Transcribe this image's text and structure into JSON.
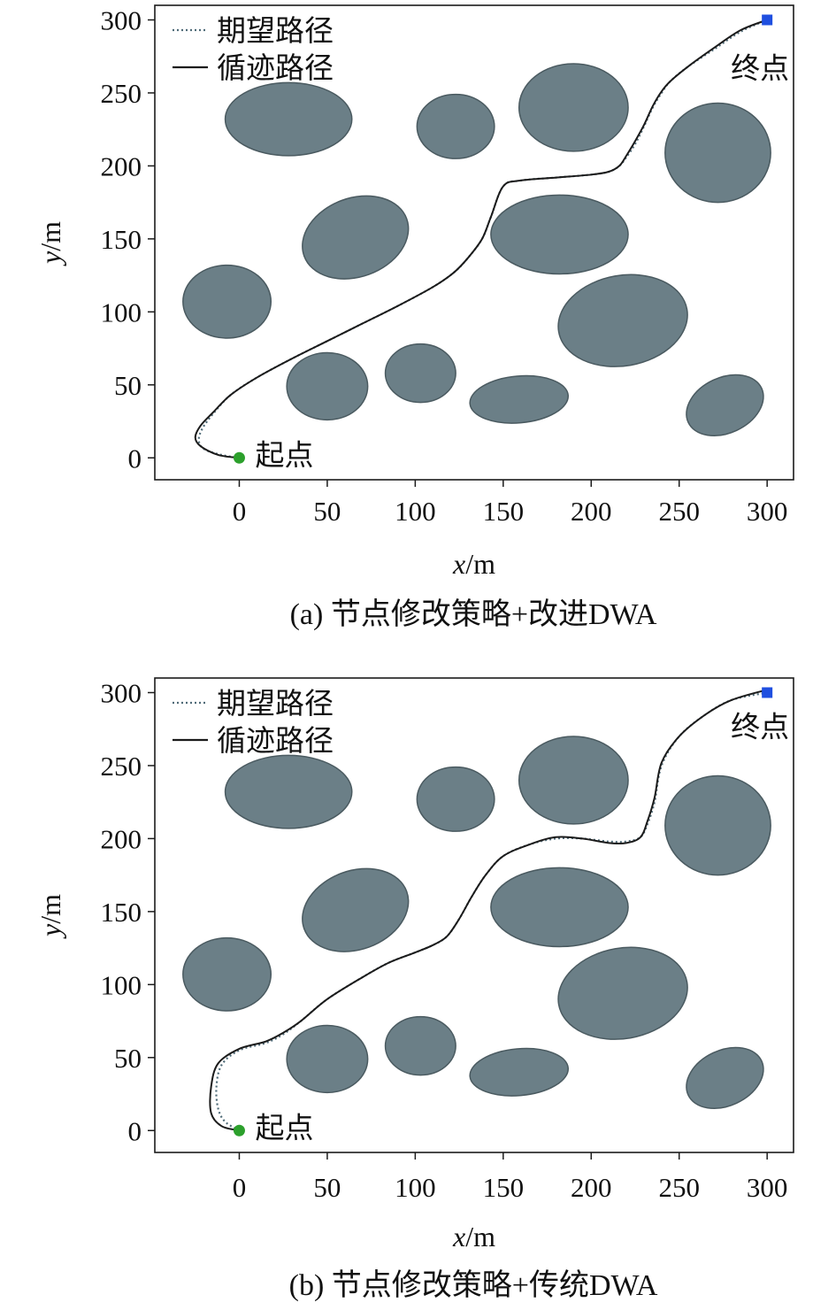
{
  "chart_data": [
    {
      "type": "line",
      "caption": "(a) 节点修改策略+改进DWA",
      "xlabel_var": "x",
      "xlabel_unit": "/m",
      "ylabel_var": "y",
      "ylabel_unit": "/m",
      "xlim": [
        -48,
        315
      ],
      "ylim": [
        -15,
        310
      ],
      "xticks": [
        0,
        50,
        100,
        150,
        200,
        250,
        300
      ],
      "yticks": [
        0,
        50,
        100,
        150,
        200,
        250,
        300
      ],
      "legend": {
        "placement": "top-left",
        "entries": [
          "期望路径",
          "循迹路径"
        ]
      },
      "start": {
        "label": "起点",
        "x": 0,
        "y": 0,
        "color": "#2ca02c"
      },
      "goal": {
        "label": "终点",
        "x": 300,
        "y": 300,
        "color": "#1f4fe0"
      },
      "obstacles": [
        {
          "cx": 28,
          "cy": 232,
          "rx": 36,
          "ry": 25,
          "rot": 0
        },
        {
          "cx": 123,
          "cy": 227,
          "rx": 22,
          "ry": 22,
          "rot": 0
        },
        {
          "cx": 190,
          "cy": 240,
          "rx": 31,
          "ry": 30,
          "rot": 0
        },
        {
          "cx": 272,
          "cy": 209,
          "rx": 30,
          "ry": 34,
          "rot": 0
        },
        {
          "cx": 66,
          "cy": 151,
          "rx": 31,
          "ry": 27,
          "rot": -20
        },
        {
          "cx": 182,
          "cy": 153,
          "rx": 39,
          "ry": 27,
          "rot": 0
        },
        {
          "cx": -7,
          "cy": 107,
          "rx": 25,
          "ry": 25,
          "rot": 0
        },
        {
          "cx": 50,
          "cy": 49,
          "rx": 23,
          "ry": 23,
          "rot": 0
        },
        {
          "cx": 103,
          "cy": 58,
          "rx": 20,
          "ry": 20,
          "rot": 0
        },
        {
          "cx": 218,
          "cy": 94,
          "rx": 37,
          "ry": 31,
          "rot": -10
        },
        {
          "cx": 159,
          "cy": 40,
          "rx": 28,
          "ry": 16,
          "rot": -5
        },
        {
          "cx": 276,
          "cy": 36,
          "rx": 23,
          "ry": 19,
          "rot": -25
        }
      ],
      "series": [
        {
          "name": "期望路径",
          "style": "dotted",
          "x": [
            0,
            -10,
            -20,
            -23,
            -21,
            -15,
            -5,
            10,
            30,
            50,
            70,
            90,
            110,
            122,
            130,
            138,
            143,
            150,
            160,
            180,
            200,
            210,
            216,
            220,
            225,
            230,
            235,
            240,
            245,
            255,
            270,
            285,
            300
          ],
          "y": [
            0,
            2,
            6,
            12,
            20,
            30,
            43,
            55,
            68,
            80,
            92,
            104,
            117,
            127,
            137,
            150,
            165,
            186,
            190,
            192,
            194,
            196,
            200,
            206,
            215,
            227,
            240,
            250,
            258,
            268,
            280,
            292,
            300
          ]
        },
        {
          "name": "循迹路径",
          "style": "solid",
          "x": [
            0,
            -12,
            -22,
            -25,
            -22,
            -15,
            -5,
            10,
            30,
            50,
            70,
            90,
            110,
            122,
            130,
            138,
            143,
            150,
            160,
            180,
            200,
            210,
            216,
            220,
            225,
            230,
            235,
            240,
            245,
            255,
            270,
            285,
            300
          ],
          "y": [
            0,
            2,
            8,
            14,
            22,
            31,
            43,
            55,
            68,
            80,
            92,
            104,
            117,
            127,
            137,
            150,
            165,
            186,
            190,
            192,
            194,
            196,
            200,
            207,
            217,
            228,
            241,
            251,
            258,
            268,
            281,
            293,
            300
          ]
        }
      ]
    },
    {
      "type": "line",
      "caption": "(b) 节点修改策略+传统DWA",
      "xlabel_var": "x",
      "xlabel_unit": "/m",
      "ylabel_var": "y",
      "ylabel_unit": "/m",
      "xlim": [
        -48,
        315
      ],
      "ylim": [
        -15,
        310
      ],
      "xticks": [
        0,
        50,
        100,
        150,
        200,
        250,
        300
      ],
      "yticks": [
        0,
        50,
        100,
        150,
        200,
        250,
        300
      ],
      "legend": {
        "placement": "top-left",
        "entries": [
          "期望路径",
          "循迹路径"
        ]
      },
      "start": {
        "label": "起点",
        "x": 0,
        "y": 0,
        "color": "#2ca02c"
      },
      "goal": {
        "label": "终点",
        "x": 300,
        "y": 300,
        "color": "#1f4fe0"
      },
      "obstacles": [
        {
          "cx": 28,
          "cy": 232,
          "rx": 36,
          "ry": 25,
          "rot": 0
        },
        {
          "cx": 123,
          "cy": 227,
          "rx": 22,
          "ry": 22,
          "rot": 0
        },
        {
          "cx": 190,
          "cy": 240,
          "rx": 31,
          "ry": 30,
          "rot": 0
        },
        {
          "cx": 272,
          "cy": 209,
          "rx": 30,
          "ry": 34,
          "rot": 0
        },
        {
          "cx": 66,
          "cy": 151,
          "rx": 31,
          "ry": 27,
          "rot": -20
        },
        {
          "cx": 182,
          "cy": 153,
          "rx": 39,
          "ry": 27,
          "rot": 0
        },
        {
          "cx": -7,
          "cy": 107,
          "rx": 25,
          "ry": 25,
          "rot": 0
        },
        {
          "cx": 50,
          "cy": 49,
          "rx": 23,
          "ry": 23,
          "rot": 0
        },
        {
          "cx": 103,
          "cy": 58,
          "rx": 20,
          "ry": 20,
          "rot": 0
        },
        {
          "cx": 218,
          "cy": 94,
          "rx": 37,
          "ry": 31,
          "rot": -10
        },
        {
          "cx": 159,
          "cy": 40,
          "rx": 28,
          "ry": 16,
          "rot": -5
        },
        {
          "cx": 276,
          "cy": 36,
          "rx": 23,
          "ry": 19,
          "rot": -25
        }
      ],
      "series": [
        {
          "name": "期望路径",
          "style": "dotted",
          "x": [
            0,
            -8,
            -12,
            -13,
            -10,
            0,
            15,
            25,
            35,
            50,
            70,
            85,
            100,
            110,
            118,
            125,
            132,
            140,
            150,
            165,
            180,
            195,
            210,
            220,
            228,
            232,
            236,
            240,
            250,
            265,
            280,
            300
          ],
          "y": [
            0,
            6,
            15,
            30,
            45,
            55,
            60,
            66,
            75,
            90,
            105,
            115,
            122,
            127,
            133,
            145,
            160,
            175,
            188,
            196,
            200,
            200,
            198,
            198,
            201,
            210,
            225,
            250,
            270,
            285,
            295,
            300
          ]
        },
        {
          "name": "循迹路径",
          "style": "solid",
          "x": [
            0,
            -10,
            -16,
            -16,
            -12,
            0,
            15,
            25,
            35,
            50,
            70,
            85,
            100,
            110,
            118,
            125,
            132,
            140,
            150,
            165,
            180,
            195,
            210,
            220,
            228,
            232,
            236,
            240,
            250,
            265,
            280,
            300
          ],
          "y": [
            0,
            3,
            12,
            30,
            46,
            56,
            61,
            67,
            75,
            90,
            105,
            115,
            122,
            127,
            133,
            145,
            160,
            175,
            188,
            196,
            201,
            200,
            197,
            197,
            201,
            212,
            228,
            252,
            270,
            285,
            295,
            302
          ]
        }
      ]
    }
  ]
}
